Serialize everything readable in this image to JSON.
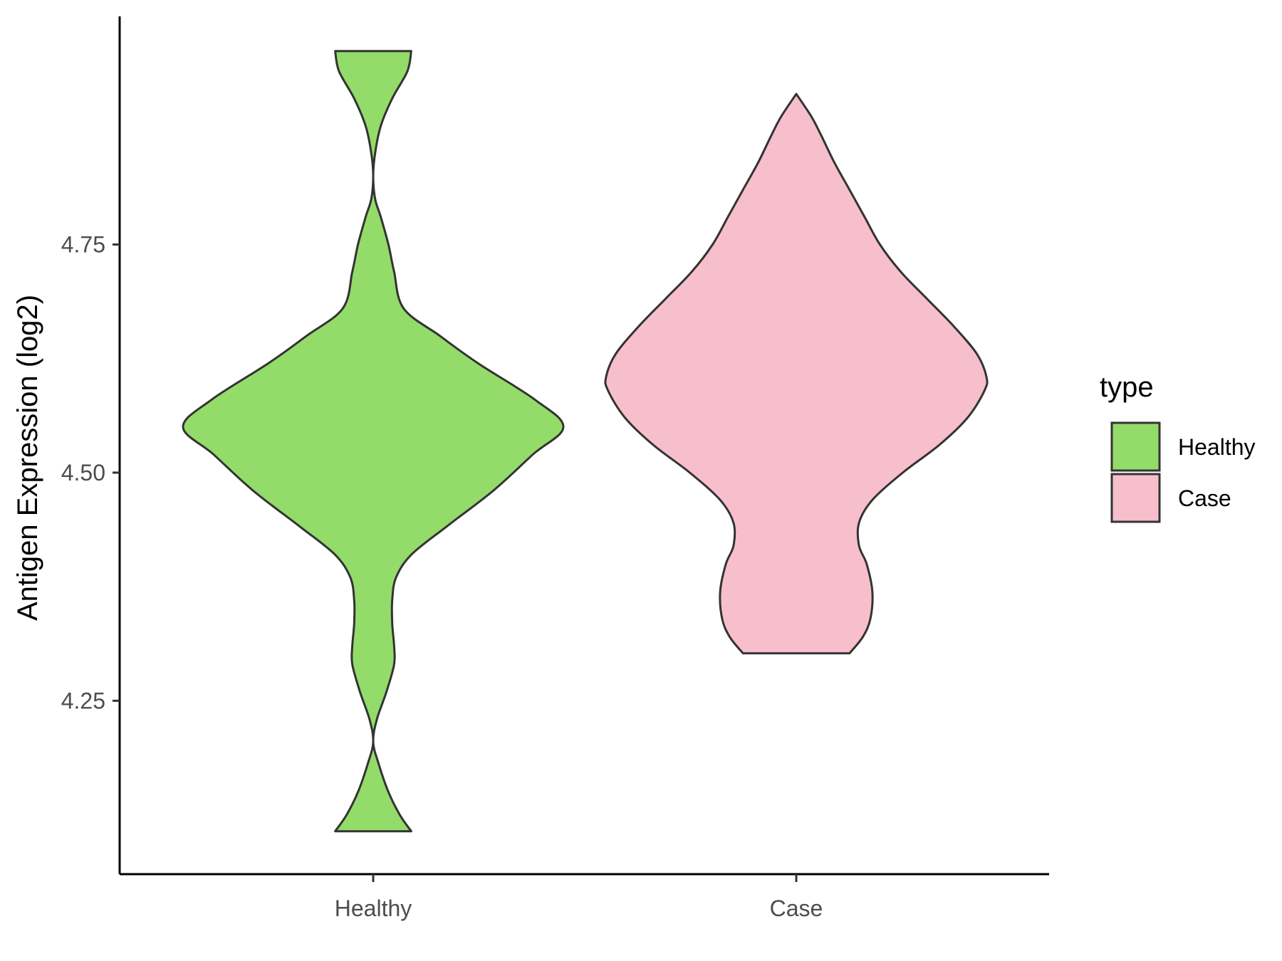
{
  "chart_data": {
    "type": "violin",
    "ylabel": "Antigen Expression (log2)",
    "xlabel": "",
    "ylim": [
      4.06,
      5.0
    ],
    "yticks": [
      "4.25",
      "4.50",
      "4.75"
    ],
    "categories": [
      "Healthy",
      "Case"
    ],
    "legend": {
      "title": "type",
      "position": "right",
      "items": [
        {
          "label": "Healthy",
          "color": "#93dc6a"
        },
        {
          "label": "Case",
          "color": "#f7bfcb"
        }
      ]
    },
    "grid": false,
    "series": [
      {
        "name": "Healthy",
        "color": "#93dc6a",
        "min": 4.107,
        "max": 4.962,
        "density_profile": [
          [
            4.107,
            0.2
          ],
          [
            4.125,
            0.14
          ],
          [
            4.15,
            0.08
          ],
          [
            4.18,
            0.03
          ],
          [
            4.205,
            0.0
          ],
          [
            4.23,
            0.02
          ],
          [
            4.26,
            0.07
          ],
          [
            4.29,
            0.11
          ],
          [
            4.31,
            0.11
          ],
          [
            4.335,
            0.1
          ],
          [
            4.36,
            0.1
          ],
          [
            4.385,
            0.12
          ],
          [
            4.41,
            0.2
          ],
          [
            4.44,
            0.38
          ],
          [
            4.48,
            0.63
          ],
          [
            4.52,
            0.84
          ],
          [
            4.55,
            1.0
          ],
          [
            4.58,
            0.85
          ],
          [
            4.62,
            0.55
          ],
          [
            4.65,
            0.35
          ],
          [
            4.68,
            0.16
          ],
          [
            4.72,
            0.11
          ],
          [
            4.75,
            0.08
          ],
          [
            4.78,
            0.04
          ],
          [
            4.8,
            0.01
          ],
          [
            4.825,
            0.0
          ],
          [
            4.85,
            0.01
          ],
          [
            4.88,
            0.04
          ],
          [
            4.91,
            0.1
          ],
          [
            4.94,
            0.18
          ],
          [
            4.962,
            0.2
          ]
        ]
      },
      {
        "name": "Case",
        "color": "#f7bfcb",
        "min": 4.302,
        "max": 4.915,
        "density_profile": [
          [
            4.302,
            0.28
          ],
          [
            4.32,
            0.35
          ],
          [
            4.34,
            0.39
          ],
          [
            4.37,
            0.4
          ],
          [
            4.4,
            0.37
          ],
          [
            4.42,
            0.33
          ],
          [
            4.445,
            0.33
          ],
          [
            4.47,
            0.4
          ],
          [
            4.5,
            0.56
          ],
          [
            4.53,
            0.75
          ],
          [
            4.56,
            0.9
          ],
          [
            4.59,
            0.99
          ],
          [
            4.605,
            1.0
          ],
          [
            4.63,
            0.95
          ],
          [
            4.66,
            0.83
          ],
          [
            4.69,
            0.69
          ],
          [
            4.72,
            0.55
          ],
          [
            4.75,
            0.44
          ],
          [
            4.78,
            0.36
          ],
          [
            4.81,
            0.28
          ],
          [
            4.84,
            0.2
          ],
          [
            4.87,
            0.13
          ],
          [
            4.89,
            0.08
          ],
          [
            4.915,
            0.0
          ]
        ]
      }
    ]
  }
}
